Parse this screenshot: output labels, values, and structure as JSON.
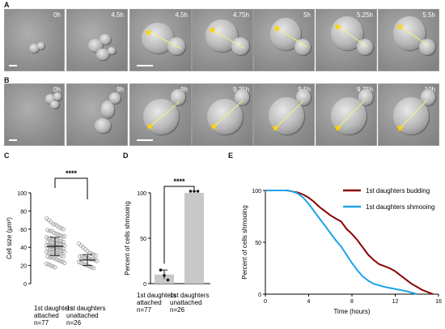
{
  "panel_labels": {
    "A": "A",
    "B": "B",
    "C": "C",
    "D": "D",
    "E": "E"
  },
  "row_A_times": [
    "0h",
    "4.5h",
    "4.5h",
    "4.75h",
    "5h",
    "5.25h",
    "5.5h"
  ],
  "row_B_times": [
    "0h",
    "9h",
    "9h",
    "9.25h",
    "9.5h",
    "9.75h",
    "10h"
  ],
  "colors": {
    "budding": "#8b0000",
    "shmooing": "#1fa2e8",
    "scatter": "#9a9a9a",
    "bar": "#c8c8c8",
    "star": "#ffd400"
  },
  "chart_data": [
    {
      "type": "scatter",
      "panel": "C",
      "ylabel": "Cell size (µm²)",
      "ylim": [
        0,
        100
      ],
      "yticks": [
        "0",
        "20",
        "40",
        "60",
        "80",
        "100"
      ],
      "categories": [
        "1st daughters attached",
        "1st daughters unattached"
      ],
      "category_lines": [
        [
          "1st daughters",
          "attached",
          "n=77"
        ],
        [
          "1st daughters",
          "unattached",
          "n=26"
        ]
      ],
      "summary": [
        {
          "mean": 41,
          "sd_low": 31,
          "sd_high": 51
        },
        {
          "mean": 26,
          "sd_low": 20,
          "sd_high": 32
        }
      ],
      "significance": "****",
      "series": [
        {
          "values": [
            72,
            70,
            68,
            66,
            65,
            64,
            62,
            61,
            60,
            59,
            58,
            58,
            56,
            55,
            54,
            53,
            52,
            52,
            51,
            50,
            50,
            49,
            48,
            48,
            47,
            47,
            46,
            46,
            45,
            45,
            44,
            44,
            44,
            43,
            43,
            42,
            42,
            42,
            41,
            41,
            41,
            40,
            40,
            40,
            39,
            39,
            38,
            38,
            38,
            37,
            37,
            36,
            36,
            35,
            35,
            34,
            34,
            33,
            33,
            32,
            32,
            31,
            30,
            30,
            29,
            29,
            28,
            27,
            26,
            25,
            24,
            23,
            22,
            21,
            20,
            19,
            18
          ]
        },
        {
          "values": [
            44,
            42,
            40,
            38,
            36,
            34,
            33,
            32,
            31,
            30,
            30,
            29,
            28,
            28,
            27,
            27,
            26,
            25,
            24,
            23,
            22,
            21,
            20,
            19,
            18,
            17
          ]
        }
      ]
    },
    {
      "type": "bar",
      "panel": "D",
      "ylabel": "Percent of cells shmooing",
      "ylim": [
        0,
        100
      ],
      "yticks": [
        "0",
        "50",
        "100"
      ],
      "categories": [
        "1st daughters attached",
        "1st daughters unattached"
      ],
      "category_lines": [
        [
          "1st daughters",
          "attached",
          "n=77"
        ],
        [
          "1st daughters",
          "unattached",
          "n=26"
        ]
      ],
      "values": [
        10,
        100
      ],
      "errors": [
        5,
        0
      ],
      "points": [
        [
          15,
          9,
          4
        ],
        [
          100,
          100,
          100
        ]
      ],
      "significance": "****"
    },
    {
      "type": "line",
      "panel": "E",
      "xlabel": "Time (hours)",
      "ylabel": "Percent of cells shmooing",
      "xlim": [
        0,
        16
      ],
      "ylim": [
        0,
        100
      ],
      "xticks": [
        "0",
        "4",
        "8",
        "12",
        "16"
      ],
      "yticks": [
        "0",
        "50",
        "100"
      ],
      "legend_position": "top-right",
      "series": [
        {
          "name": "1st daughters budding",
          "color": "#8b0000",
          "x": [
            0,
            2,
            2.5,
            3,
            3.5,
            4,
            4.5,
            5,
            5.5,
            6,
            6.5,
            7,
            7.5,
            8,
            8.5,
            9,
            9.5,
            10,
            10.5,
            11,
            11.5,
            12,
            12.5,
            13,
            13.5,
            14,
            14.5,
            15,
            15.5
          ],
          "y": [
            100,
            100,
            99,
            98,
            96,
            93,
            89,
            84,
            80,
            76,
            73,
            70,
            63,
            58,
            52,
            45,
            38,
            33,
            29,
            27,
            25,
            22,
            18,
            14,
            10,
            7,
            4,
            2,
            0
          ]
        },
        {
          "name": "1st daughters shmooing",
          "color": "#1fa2e8",
          "x": [
            0,
            2,
            2.5,
            3,
            3.5,
            4,
            4.5,
            5,
            5.5,
            6,
            6.5,
            7,
            7.5,
            8,
            8.5,
            9,
            9.5,
            10,
            11,
            12,
            13,
            14
          ],
          "y": [
            100,
            100,
            99,
            97,
            93,
            87,
            80,
            73,
            66,
            59,
            52,
            46,
            38,
            30,
            23,
            17,
            13,
            10,
            7,
            5,
            3,
            0
          ]
        }
      ]
    }
  ]
}
